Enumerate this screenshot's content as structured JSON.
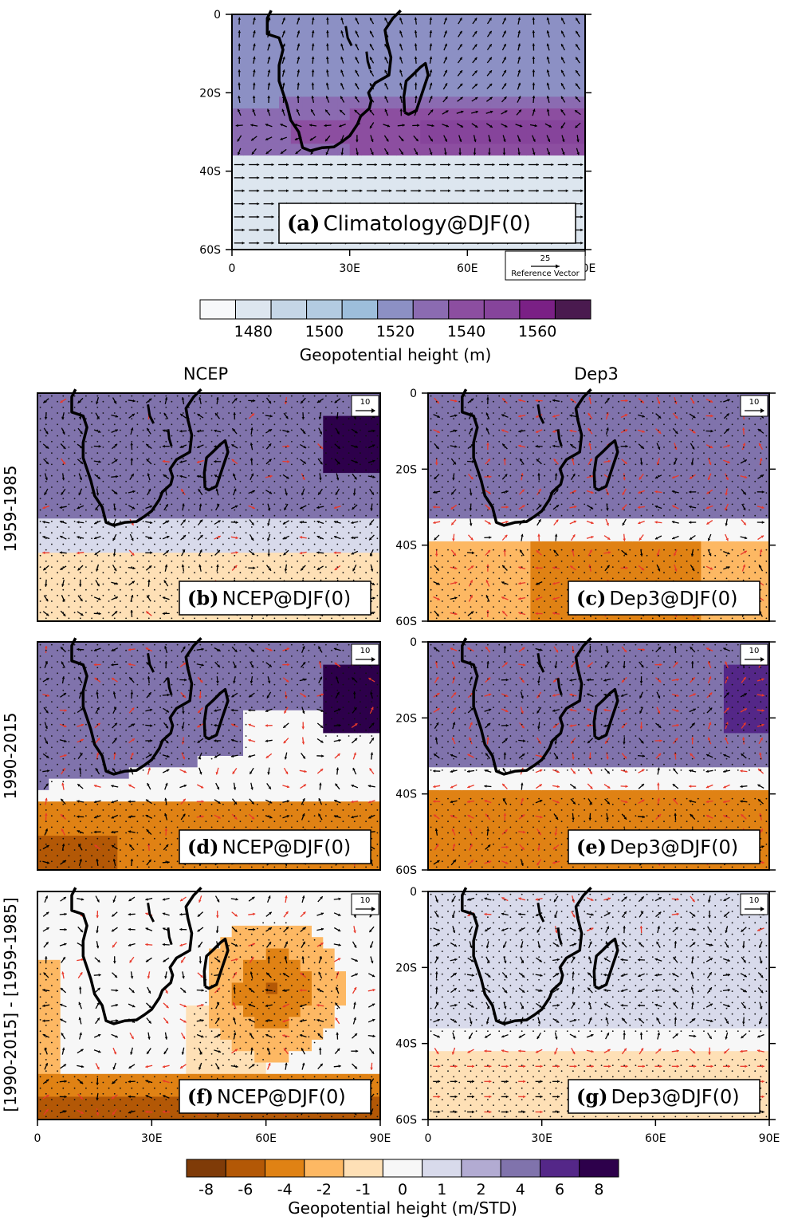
{
  "chart_data": [
    {
      "panel": "a",
      "type": "heatmap",
      "label_letter": "(a)",
      "label_text": "Climatology@DJF(0)",
      "x_ticks": [
        "0",
        "30E",
        "60E",
        "90E"
      ],
      "y_ticks": [
        "0",
        "20S",
        "40S",
        "60S"
      ],
      "xlim": [
        0,
        90
      ],
      "ylim": [
        -60,
        0
      ],
      "reference_vector": {
        "magnitude": "25",
        "label": "Reference Vector"
      }
    },
    {
      "panel": "b",
      "type": "heatmap",
      "label_letter": "(b)",
      "label_text": "NCEP@DJF(0)",
      "column_title": "NCEP",
      "row_title": "1959-1985",
      "reference_vector": {
        "magnitude": "10"
      },
      "xlim": [
        0,
        90
      ],
      "ylim": [
        -60,
        0
      ]
    },
    {
      "panel": "c",
      "type": "heatmap",
      "label_letter": "(c)",
      "label_text": "Dep3@DJF(0)",
      "column_title": "Dep3",
      "row_title": "1959-1985",
      "y_ticks": [
        "0",
        "20S",
        "40S",
        "60S"
      ],
      "reference_vector": {
        "magnitude": "10"
      },
      "xlim": [
        0,
        90
      ],
      "ylim": [
        -60,
        0
      ]
    },
    {
      "panel": "d",
      "type": "heatmap",
      "label_letter": "(d)",
      "label_text": "NCEP@DJF(0)",
      "row_title": "1990-2015",
      "reference_vector": {
        "magnitude": "10"
      },
      "xlim": [
        0,
        90
      ],
      "ylim": [
        -60,
        0
      ]
    },
    {
      "panel": "e",
      "type": "heatmap",
      "label_letter": "(e)",
      "label_text": "Dep3@DJF(0)",
      "row_title": "1990-2015",
      "y_ticks": [
        "0",
        "20S",
        "40S",
        "60S"
      ],
      "reference_vector": {
        "magnitude": "10"
      },
      "xlim": [
        0,
        90
      ],
      "ylim": [
        -60,
        0
      ]
    },
    {
      "panel": "f",
      "type": "heatmap",
      "label_letter": "(f)",
      "label_text": "NCEP@DJF(0)",
      "row_title": "[1990-2015] - [1959-1985]",
      "x_ticks": [
        "0",
        "30E",
        "60E",
        "90E"
      ],
      "reference_vector": {
        "magnitude": "10"
      },
      "xlim": [
        0,
        90
      ],
      "ylim": [
        -60,
        0
      ]
    },
    {
      "panel": "g",
      "type": "heatmap",
      "label_letter": "(g)",
      "label_text": "Dep3@DJF(0)",
      "row_title": "[1990-2015] - [1959-1985]",
      "x_ticks": [
        "0",
        "30E",
        "60E",
        "90E"
      ],
      "y_ticks": [
        "0",
        "20S",
        "40S",
        "60S"
      ],
      "reference_vector": {
        "magnitude": "10"
      },
      "xlim": [
        0,
        90
      ],
      "ylim": [
        -60,
        0
      ]
    }
  ],
  "colorbar_top": {
    "tick_labels": [
      "1480",
      "1500",
      "1520",
      "1540",
      "1560"
    ],
    "label": "Geopotential height (m)",
    "colors": [
      "#f7f8fa",
      "#dde6ef",
      "#c5d6e6",
      "#b3cbe1",
      "#9dbedb",
      "#8c90c4",
      "#8b6bb1",
      "#8c4ea0",
      "#86449b",
      "#7a2085",
      "#4a1a4f"
    ]
  },
  "colorbar_bottom": {
    "tick_labels": [
      "-8",
      "-6",
      "-4",
      "-2",
      "-1",
      "0",
      "1",
      "2",
      "4",
      "6",
      "8"
    ],
    "label": "Geopotential height (m/STD)",
    "colors": [
      "#7f3b08",
      "#b35806",
      "#e08214",
      "#fdb863",
      "#fee0b6",
      "#f7f7f7",
      "#d8daeb",
      "#b2abd2",
      "#8073ac",
      "#542788",
      "#2d004b"
    ]
  },
  "titles": {
    "col_ncep": "NCEP",
    "col_dep3": "Dep3",
    "row1": "1959-1985",
    "row2": "1990-2015",
    "row3": "[1990-2015] - [1959-1985]"
  }
}
